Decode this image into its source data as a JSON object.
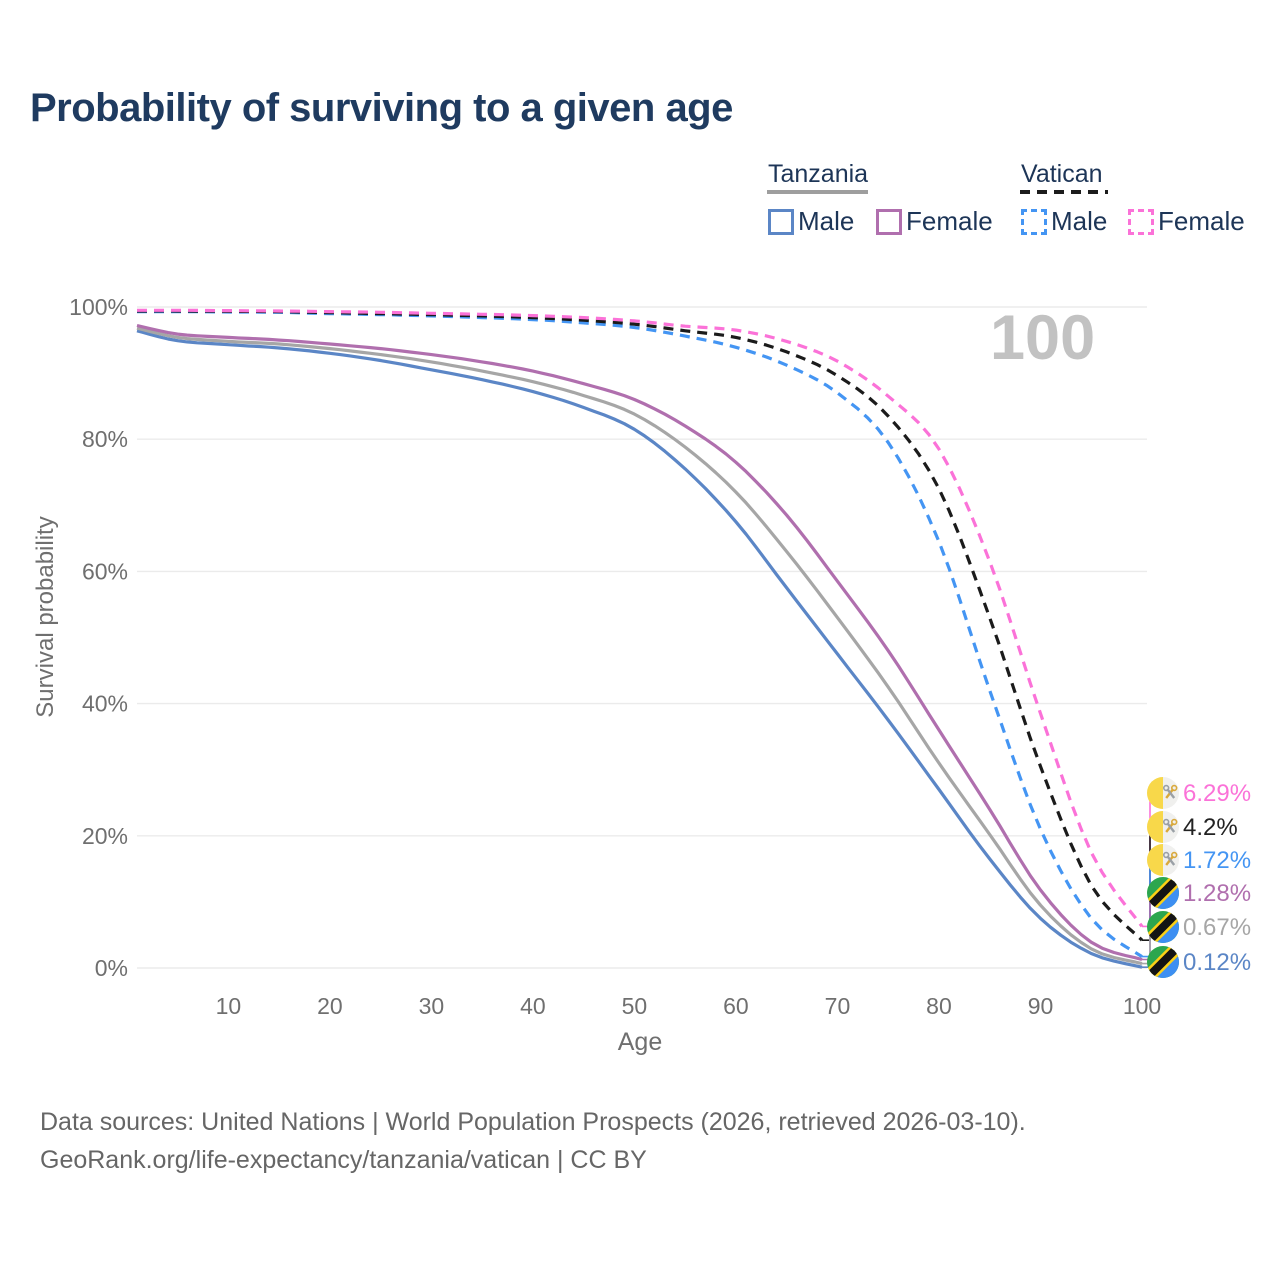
{
  "title": "Probability of surviving to a given age",
  "watermark_age": "100",
  "legend": {
    "groups": [
      {
        "label": "Tanzania",
        "line_style": "solid",
        "underline_color": "#9e9e9e",
        "items": [
          {
            "label": "Male",
            "color": "#5b86c6"
          },
          {
            "label": "Female",
            "color": "#b06fae"
          }
        ]
      },
      {
        "label": "Vatican",
        "line_style": "dashed",
        "underline_color": "#1c1c1c",
        "items": [
          {
            "label": "Male",
            "color": "#4495f3"
          },
          {
            "label": "Female",
            "color": "#fb72d8"
          }
        ]
      }
    ]
  },
  "chart_data": {
    "type": "line",
    "title": "Probability of surviving to a given age",
    "grid": "horizontal",
    "legend_position": "top-right",
    "xlim": [
      1,
      100
    ],
    "ylim": [
      0,
      100
    ],
    "x_axis": {
      "label": "Age",
      "ticks": [
        {
          "value": 10,
          "label": "10"
        },
        {
          "value": 20,
          "label": "20"
        },
        {
          "value": 30,
          "label": "30"
        },
        {
          "value": 40,
          "label": "40"
        },
        {
          "value": 50,
          "label": "50"
        },
        {
          "value": 60,
          "label": "60"
        },
        {
          "value": 70,
          "label": "70"
        },
        {
          "value": 80,
          "label": "80"
        },
        {
          "value": 90,
          "label": "90"
        },
        {
          "value": 100,
          "label": "100"
        }
      ]
    },
    "y_axis": {
      "label": "Survival probability",
      "ticks": [
        {
          "value": 0,
          "label": "0%"
        },
        {
          "value": 20,
          "label": "20%"
        },
        {
          "value": 40,
          "label": "40%"
        },
        {
          "value": 60,
          "label": "60%"
        },
        {
          "value": 80,
          "label": "80%"
        },
        {
          "value": 100,
          "label": "100%"
        }
      ]
    },
    "x": [
      1,
      5,
      10,
      15,
      20,
      25,
      30,
      35,
      40,
      45,
      50,
      55,
      60,
      65,
      70,
      75,
      80,
      85,
      90,
      95,
      100
    ],
    "series": [
      {
        "name": "Tanzania Male",
        "country": "Tanzania",
        "sex": "Male",
        "color": "#5b86c6",
        "label_color": "#5b86c6",
        "dashed": false,
        "flag": "tanzania",
        "end_label": "0.12%",
        "end_value": 0.12,
        "values": [
          96.4,
          94.9,
          94.3,
          93.8,
          93.0,
          91.9,
          90.5,
          89.0,
          87.2,
          84.8,
          81.5,
          75.5,
          67.5,
          57.5,
          47.5,
          37.5,
          27.0,
          16.5,
          7.5,
          2.2,
          0.12
        ]
      },
      {
        "name": "Tanzania Both sexes",
        "country": "Tanzania",
        "sex": "Both sexes",
        "color": "#a6a6a6",
        "label_color": "#a6a6a6",
        "dashed": false,
        "flag": "tanzania",
        "end_label": "0.67%",
        "end_value": 0.67,
        "values": [
          96.8,
          95.4,
          94.8,
          94.4,
          93.7,
          92.8,
          91.7,
          90.3,
          88.7,
          86.6,
          83.8,
          78.8,
          72.0,
          63.0,
          53.0,
          42.5,
          31.0,
          20.2,
          9.5,
          2.9,
          0.67
        ]
      },
      {
        "name": "Tanzania Female",
        "country": "Tanzania",
        "sex": "Female",
        "color": "#b06fae",
        "label_color": "#b06fae",
        "dashed": false,
        "flag": "tanzania",
        "end_label": "1.28%",
        "end_value": 1.28,
        "values": [
          97.2,
          95.9,
          95.4,
          95.0,
          94.4,
          93.7,
          92.8,
          91.7,
          90.3,
          88.4,
          86.0,
          82.0,
          76.5,
          68.5,
          58.5,
          48.0,
          36.0,
          24.0,
          11.8,
          3.9,
          1.28
        ]
      },
      {
        "name": "Vatican Male",
        "country": "Vatican",
        "sex": "Male",
        "color": "#4495f3",
        "label_color": "#4495f3",
        "dashed": true,
        "flag": "vatican",
        "end_label": "1.72%",
        "end_value": 1.72,
        "values": [
          99.3,
          99.3,
          99.25,
          99.2,
          99.0,
          98.85,
          98.65,
          98.4,
          98.1,
          97.6,
          96.9,
          95.6,
          93.9,
          91.2,
          87.0,
          79.5,
          64.5,
          42.0,
          21.0,
          7.5,
          1.72
        ]
      },
      {
        "name": "Vatican Both sexes",
        "country": "Vatican",
        "sex": "Both sexes",
        "color": "#1b1b1b",
        "label_color": "#222222",
        "dashed": true,
        "flag": "vatican",
        "end_label": "4.2%",
        "end_value": 4.2,
        "values": [
          99.4,
          99.4,
          99.35,
          99.3,
          99.15,
          99.0,
          98.85,
          98.65,
          98.4,
          98.0,
          97.4,
          96.4,
          95.4,
          93.2,
          89.6,
          83.5,
          72.5,
          53.0,
          30.5,
          12.5,
          4.2
        ]
      },
      {
        "name": "Vatican Female",
        "country": "Vatican",
        "sex": "Female",
        "color": "#fb72d8",
        "label_color": "#fb72d8",
        "dashed": true,
        "flag": "vatican",
        "end_label": "6.29%",
        "end_value": 6.29,
        "values": [
          99.5,
          99.5,
          99.45,
          99.4,
          99.3,
          99.2,
          99.05,
          98.9,
          98.7,
          98.4,
          97.9,
          97.1,
          96.5,
          94.8,
          91.8,
          86.5,
          78.5,
          61.5,
          38.5,
          17.5,
          6.29
        ]
      }
    ]
  },
  "footer": {
    "line1": "Data sources: United Nations | World Population Prospects (2026, retrieved 2026-03-10).",
    "line2": "GeoRank.org/life-expectancy/tanzania/vatican | CC BY"
  }
}
